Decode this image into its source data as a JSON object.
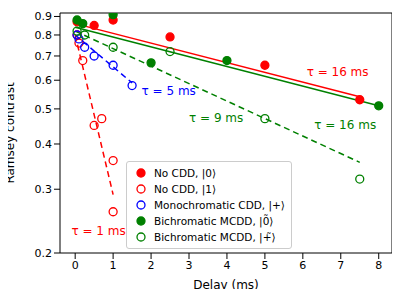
{
  "chart_data": {
    "type": "scatter",
    "xlabel": "Delay (ms)",
    "ylabel": "Ramsey contrast",
    "log": "y",
    "grid": false,
    "legend": "lower left",
    "xlim": [
      -0.4,
      8.35
    ],
    "ylim": [
      0.2,
      0.92
    ],
    "xticks": [
      0,
      1,
      2,
      3,
      4,
      5,
      6,
      7,
      8
    ],
    "yticks": [
      0.2,
      0.3,
      0.4,
      0.5,
      0.6,
      0.7,
      0.8,
      0.9
    ],
    "series": [
      {
        "name": "No CDD, |0⟩",
        "type": "scatter",
        "color": "#ff0000",
        "marker": "circle",
        "x": [
          0.05,
          0.5,
          1,
          2.5,
          5,
          7.5
        ],
        "values": [
          0.87,
          0.85,
          0.88,
          0.79,
          0.66,
          0.53
        ]
      },
      {
        "name": "No CDD, |1⟩",
        "type": "scatter",
        "color": "#ff0000",
        "marker": "open_circle",
        "x": [
          0.05,
          0.1,
          0.2,
          0.5,
          0.7,
          1,
          1
        ],
        "values": [
          0.8,
          0.76,
          0.68,
          0.45,
          0.47,
          0.36,
          0.26
        ]
      },
      {
        "name": "Monochromatic CDD, |+⟩",
        "type": "scatter",
        "color": "#0000ff",
        "marker": "open_circle",
        "x": [
          0.05,
          0.1,
          0.25,
          0.5,
          1,
          1.5
        ],
        "values": [
          0.8,
          0.78,
          0.74,
          0.7,
          0.66,
          0.58
        ]
      },
      {
        "name": "Bichromatic MCDD, |0̃⟩",
        "type": "scatter",
        "color": "#008000",
        "marker": "circle",
        "x": [
          0.05,
          0.2,
          1,
          2,
          4,
          8
        ],
        "values": [
          0.88,
          0.86,
          0.91,
          0.67,
          0.68,
          0.51
        ]
      },
      {
        "name": "Bichromatic MCDD, |+̃⟩",
        "type": "scatter",
        "color": "#008000",
        "marker": "open_circle",
        "x": [
          0.05,
          0.25,
          1,
          2.5,
          5,
          7.5
        ],
        "values": [
          0.82,
          0.8,
          0.74,
          0.72,
          0.47,
          0.32
        ]
      },
      {
        "type": "line",
        "color": "#ff0000",
        "line_style": "solid",
        "x": [
          0,
          7.5
        ],
        "values": [
          0.86,
          0.54
        ]
      },
      {
        "type": "line",
        "color": "#008000",
        "line_style": "solid",
        "x": [
          0,
          8
        ],
        "values": [
          0.84,
          0.51
        ]
      },
      {
        "type": "line",
        "color": "#008000",
        "line_style": "dashed",
        "x": [
          0,
          7.5
        ],
        "values": [
          0.82,
          0.356
        ]
      },
      {
        "type": "line",
        "color": "#0000ff",
        "line_style": "dashed",
        "x": [
          0,
          1.5
        ],
        "values": [
          0.8,
          0.59
        ]
      },
      {
        "type": "line",
        "color": "#ff0000",
        "line_style": "dashed",
        "x": [
          0,
          1
        ],
        "values": [
          0.8,
          0.29
        ]
      }
    ],
    "annotations": [
      {
        "text": "τ = 16 ms",
        "x": 6.1,
        "y": 0.63,
        "color": "#ff0000"
      },
      {
        "text": "τ = 16 ms",
        "x": 6.3,
        "y": 0.45,
        "color": "#008000"
      },
      {
        "text": "τ = 9 ms",
        "x": 3.0,
        "y": 0.47,
        "color": "#008000"
      },
      {
        "text": "τ = 5 ms",
        "x": 1.75,
        "y": 0.56,
        "color": "#0000ff"
      },
      {
        "text": "τ = 1 ms",
        "x": -0.1,
        "y": 0.23,
        "color": "#ff0000"
      }
    ]
  }
}
